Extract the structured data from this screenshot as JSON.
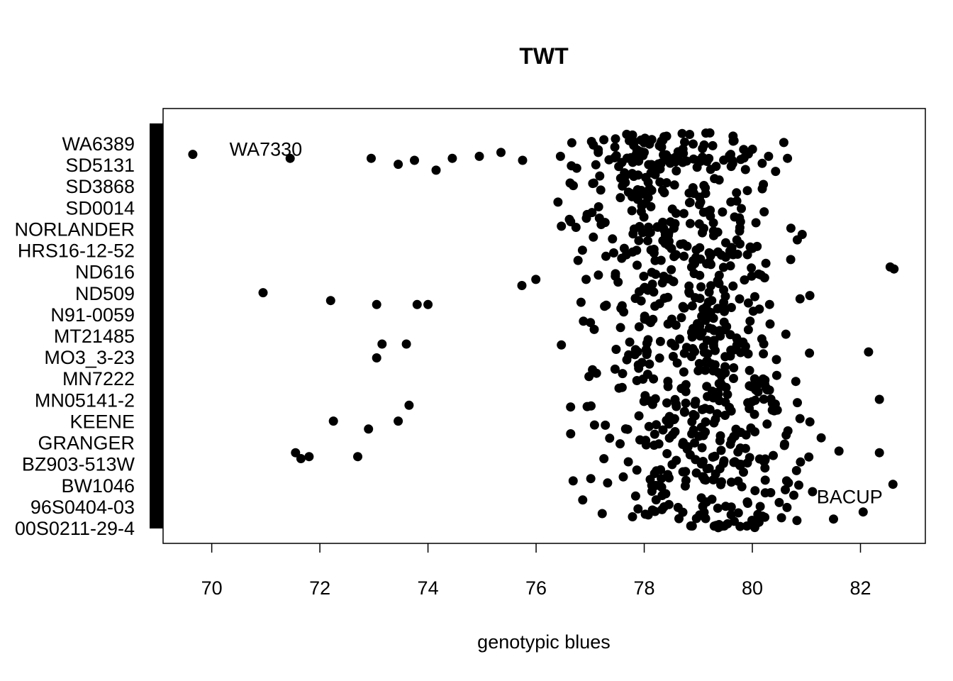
{
  "chart_data": {
    "type": "scatter",
    "title": "TWT",
    "xlabel": "genotypic blues",
    "ylabel": "",
    "xlim": [
      69.1,
      83.2
    ],
    "xticks": [
      70,
      72,
      74,
      76,
      78,
      80,
      82
    ],
    "yticklabels": [
      "WA6389",
      "SD5131",
      "SD3868",
      "SD0014",
      "NORLANDER",
      "HRS16-12-52",
      "ND616",
      "ND509",
      "N91-0059",
      "MT21485",
      "MO3_3-23",
      "MN7222",
      "MN05141-2",
      "KEENE",
      "GRANGER",
      "BZ903-513W",
      "BW1046",
      "96S0404-03",
      "00S0211-29-4"
    ],
    "annotations": [
      {
        "text": "WA7330",
        "x": 71.0,
        "y": 0.96
      },
      {
        "text": "BACUP",
        "x": 81.8,
        "y": 0.08
      }
    ],
    "points_x_seeded": [
      69.65,
      71.45,
      72.95,
      73.45,
      73.75,
      74.15,
      74.45,
      74.95,
      75.35,
      75.75,
      76.45,
      77.15,
      78.0,
      79.6,
      80.3,
      80.65
    ],
    "points_y_seeded": [
      0.945,
      0.935,
      0.935,
      0.92,
      0.93,
      0.905,
      0.935,
      0.94,
      0.95,
      0.93,
      0.94,
      0.95,
      0.95,
      0.945,
      0.94,
      0.935
    ],
    "outliers": [
      {
        "x": 70.95,
        "y": 0.595
      },
      {
        "x": 72.2,
        "y": 0.575
      },
      {
        "x": 73.05,
        "y": 0.565
      },
      {
        "x": 73.8,
        "y": 0.565
      },
      {
        "x": 74.0,
        "y": 0.565
      },
      {
        "x": 71.55,
        "y": 0.19
      },
      {
        "x": 71.65,
        "y": 0.175
      },
      {
        "x": 71.8,
        "y": 0.18
      },
      {
        "x": 72.7,
        "y": 0.18
      },
      {
        "x": 72.25,
        "y": 0.27
      },
      {
        "x": 72.9,
        "y": 0.25
      },
      {
        "x": 73.45,
        "y": 0.27
      },
      {
        "x": 73.65,
        "y": 0.31
      },
      {
        "x": 73.05,
        "y": 0.43
      },
      {
        "x": 73.15,
        "y": 0.465
      },
      {
        "x": 73.6,
        "y": 0.465
      },
      {
        "x": 82.55,
        "y": 0.66
      },
      {
        "x": 82.62,
        "y": 0.655
      },
      {
        "x": 82.6,
        "y": 0.11
      },
      {
        "x": 82.35,
        "y": 0.19
      },
      {
        "x": 82.35,
        "y": 0.325
      },
      {
        "x": 82.15,
        "y": 0.445
      },
      {
        "x": 82.05,
        "y": 0.04
      }
    ]
  }
}
